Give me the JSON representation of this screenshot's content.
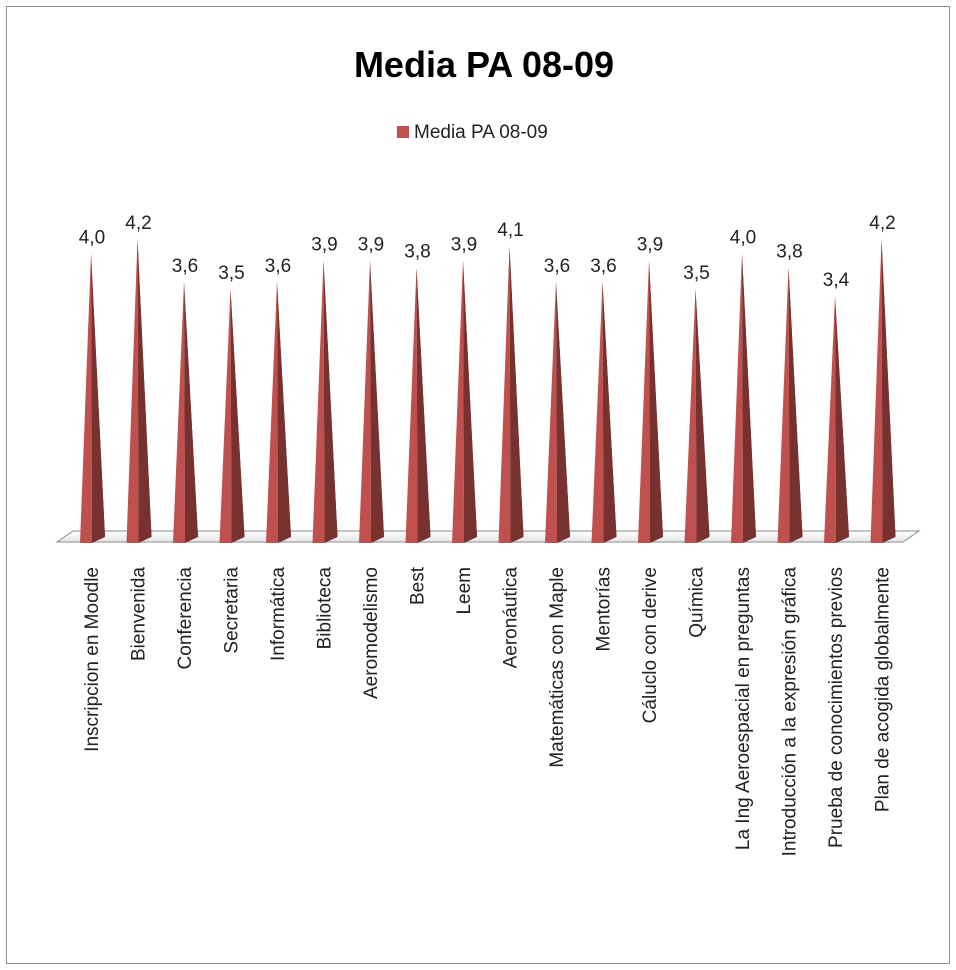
{
  "chart_data": {
    "type": "bar",
    "subtype": "3d-pyramid",
    "title": "Media PA 08-09",
    "legend": {
      "position": "top",
      "entries": [
        "Media PA 08-09"
      ]
    },
    "series": [
      {
        "name": "Media PA 08-09",
        "color": "#c0504d",
        "values": [
          4.0,
          4.2,
          3.6,
          3.5,
          3.6,
          3.9,
          3.9,
          3.8,
          3.9,
          4.1,
          3.6,
          3.6,
          3.9,
          3.5,
          4.0,
          3.8,
          3.4,
          4.2
        ]
      }
    ],
    "categories": [
      "Inscripcion en Moodle",
      "Bienvenida",
      "Conferencia",
      "Secretaria",
      "Informática",
      "Biblioteca",
      "Aeromodelismo",
      "Best",
      "Leem",
      "Aeronáutica",
      "Matemáticas con Maple",
      "Mentorías",
      "Cáluclo con derive",
      "Química",
      "La Ing Aeroespacial en preguntas",
      "Introducción a la expresión gráfica",
      "Prueba de conocimientos previos",
      "Plan de acogida globalmente"
    ],
    "data_labels": [
      "4,0",
      "4,2",
      "3,6",
      "3,5",
      "3,6",
      "3,9",
      "3,9",
      "3,8",
      "3,9",
      "4,1",
      "3,6",
      "3,6",
      "3,9",
      "3,5",
      "4,0",
      "3,8",
      "3,4",
      "4,2"
    ],
    "ylim": [
      0,
      4.2
    ],
    "grid": false,
    "xlabel": "",
    "ylabel": ""
  }
}
